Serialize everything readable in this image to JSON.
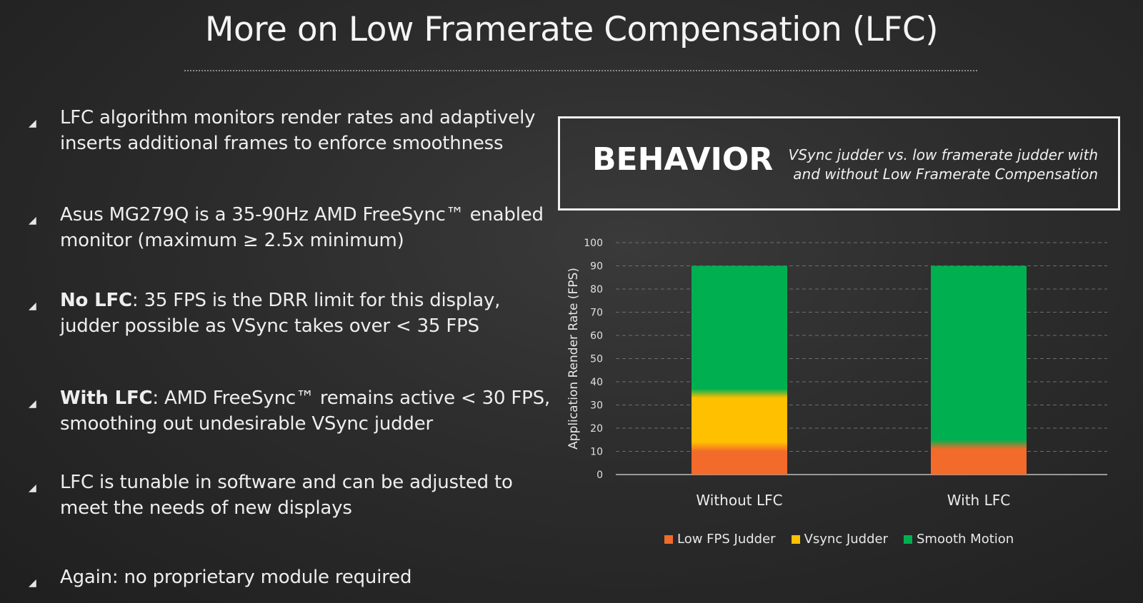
{
  "slide": {
    "title": "More on Low Framerate Compensation (LFC)"
  },
  "bullets": [
    {
      "bold": "",
      "text": "LFC algorithm monitors render rates and adaptively inserts additional frames to enforce smoothness"
    },
    {
      "bold": "",
      "text": "Asus MG279Q is a 35-90Hz AMD FreeSync™ enabled monitor (maximum ≥ 2.5x minimum)"
    },
    {
      "bold": "No LFC",
      "text": ": 35 FPS is the DRR limit for this display, judder possible as VSync takes over < 35 FPS"
    },
    {
      "bold": "With LFC",
      "text": ": AMD FreeSync™ remains active < 30 FPS, smoothing out undesirable VSync judder"
    },
    {
      "bold": "",
      "text": "LFC is tunable in software and can be adjusted to meet the needs of new displays"
    },
    {
      "bold": "",
      "text": "Again: no proprietary module required"
    }
  ],
  "behavior": {
    "heading": "BEHAVIOR",
    "subtitle": "VSync judder vs. low framerate judder with and without Low Framerate Compensation"
  },
  "chart_data": {
    "type": "bar",
    "stacked": true,
    "categories": [
      "Without LFC",
      "With LFC"
    ],
    "series": [
      {
        "name": "Low FPS Judder",
        "color": "#f26b2a",
        "values": [
          12,
          13
        ]
      },
      {
        "name": "Vsync Judder",
        "color": "#ffc000",
        "values": [
          23,
          0
        ]
      },
      {
        "name": "Smooth Motion",
        "color": "#00b050",
        "values": [
          55,
          77
        ]
      }
    ],
    "ylabel": "Application Render Rate (FPS)",
    "xlabel": "",
    "ylim": [
      0,
      100
    ],
    "yticks": [
      0,
      10,
      20,
      30,
      40,
      50,
      60,
      70,
      80,
      90,
      100
    ],
    "grid": true,
    "legend": "bottom"
  }
}
